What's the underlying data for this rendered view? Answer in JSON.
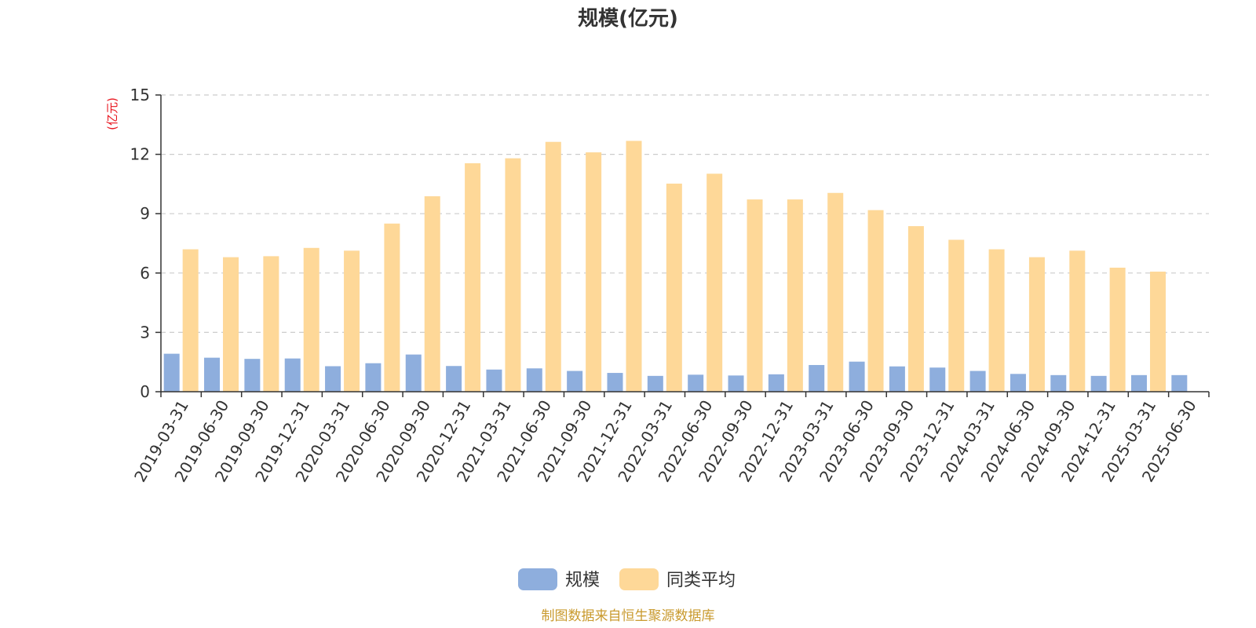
{
  "chart_data": {
    "type": "bar",
    "title": "规模(亿元)",
    "ylabel": "(亿元)",
    "ylim": [
      0,
      15
    ],
    "yticks": [
      0,
      3,
      6,
      9,
      12,
      15
    ],
    "grid": true,
    "legend_position": "bottom",
    "categories": [
      "2019-03-31",
      "2019-06-30",
      "2019-09-30",
      "2019-12-31",
      "2020-03-31",
      "2020-06-30",
      "2020-09-30",
      "2020-12-31",
      "2021-03-31",
      "2021-06-30",
      "2021-09-30",
      "2021-12-31",
      "2022-03-31",
      "2022-06-30",
      "2022-09-30",
      "2022-12-31",
      "2023-03-31",
      "2023-06-30",
      "2023-09-30",
      "2023-12-31",
      "2024-03-31",
      "2024-06-30",
      "2024-09-30",
      "2024-12-31",
      "2025-03-31",
      "2025-06-30"
    ],
    "series": [
      {
        "name": "规模",
        "color": "#8eaedd",
        "values": [
          1.92,
          1.72,
          1.66,
          1.68,
          1.29,
          1.44,
          1.88,
          1.3,
          1.12,
          1.18,
          1.05,
          0.95,
          0.8,
          0.86,
          0.82,
          0.88,
          1.35,
          1.52,
          1.28,
          1.22,
          1.05,
          0.9,
          0.84,
          0.8,
          0.84,
          0.84
        ]
      },
      {
        "name": "同类平均",
        "color": "#fed898",
        "values": [
          7.2,
          6.8,
          6.85,
          7.27,
          7.13,
          8.5,
          9.88,
          11.55,
          11.8,
          12.63,
          12.1,
          12.68,
          10.52,
          11.02,
          9.72,
          9.72,
          10.05,
          9.18,
          8.37,
          7.68,
          7.2,
          6.8,
          7.13,
          6.27,
          6.07,
          null
        ]
      }
    ]
  },
  "footer": {
    "source": "制图数据来自恒生聚源数据库"
  }
}
